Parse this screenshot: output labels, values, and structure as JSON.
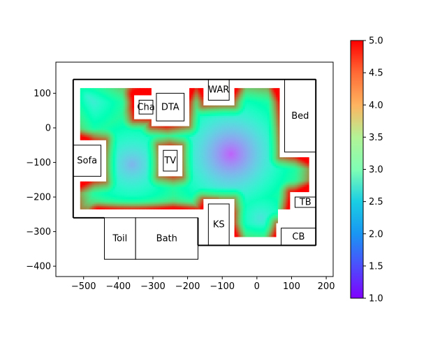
{
  "chart_data": {
    "type": "heatmap",
    "title": "",
    "xlabel": "",
    "ylabel": "",
    "xlim": [
      -580,
      220
    ],
    "ylim": [
      -430,
      190
    ],
    "xticks": [
      -500,
      -400,
      -300,
      -200,
      -100,
      0,
      100,
      200
    ],
    "yticks": [
      100,
      0,
      -100,
      -200,
      -300,
      -400
    ],
    "xtick_labels": [
      "−500",
      "−400",
      "−300",
      "−200",
      "−100",
      "0",
      "100",
      "200"
    ],
    "ytick_labels": [
      "100",
      "0",
      "−100",
      "−200",
      "−300",
      "−400"
    ],
    "colormap": "rainbow",
    "colorbar": {
      "range": [
        1.0,
        5.0
      ],
      "ticks": [
        1.0,
        1.5,
        2.0,
        2.5,
        3.0,
        3.5,
        4.0,
        4.5,
        5.0
      ],
      "tick_labels": [
        "1.0",
        "1.5",
        "2.0",
        "2.5",
        "3.0",
        "3.5",
        "4.0",
        "4.5",
        "5.0"
      ]
    },
    "field_region": {
      "xmin": -510,
      "xmax": 150,
      "ymin": -235,
      "ymax": 115
    },
    "field_extension": {
      "xmin": -110,
      "xmax": 60,
      "ymin": -315,
      "ymax": -235
    },
    "field_sources": [
      {
        "x": -75,
        "y": -75,
        "value": 1.5
      },
      {
        "x": -360,
        "y": -105,
        "value": 2.0
      },
      {
        "x": -490,
        "y": 90,
        "value": 2.3
      },
      {
        "x": 10,
        "y": -260,
        "value": 2.4
      }
    ],
    "rooms": [
      {
        "label": "WAR",
        "x0": -140,
        "x1": -80,
        "y0": 80,
        "y1": 140
      },
      {
        "label": "Cha",
        "x0": -340,
        "x1": -300,
        "y0": 40,
        "y1": 80
      },
      {
        "label": "DTA",
        "x0": -290,
        "x1": -210,
        "y0": 20,
        "y1": 100
      },
      {
        "label": "Bed",
        "x0": 80,
        "x1": 170,
        "y0": -70,
        "y1": 140
      },
      {
        "label": "Sofa",
        "x0": -530,
        "x1": -450,
        "y0": -140,
        "y1": -50
      },
      {
        "label": "TV",
        "x0": -270,
        "x1": -230,
        "y0": -125,
        "y1": -65
      },
      {
        "label": "TB",
        "x0": 110,
        "x1": 170,
        "y0": -230,
        "y1": -200
      },
      {
        "label": "KS",
        "x0": -140,
        "x1": -80,
        "y0": -340,
        "y1": -220
      },
      {
        "label": "CB",
        "x0": 70,
        "x1": 170,
        "y0": -340,
        "y1": -290
      },
      {
        "label": "Toil",
        "x0": -440,
        "x1": -350,
        "y0": -380,
        "y1": -260
      },
      {
        "label": "Bath",
        "x0": -350,
        "x1": -170,
        "y0": -380,
        "y1": -260
      }
    ],
    "walls": [
      [
        [
          -530,
          140
        ],
        [
          170,
          140
        ]
      ],
      [
        [
          170,
          140
        ],
        [
          170,
          -340
        ]
      ],
      [
        [
          -530,
          140
        ],
        [
          -530,
          -260
        ]
      ],
      [
        [
          -530,
          -260
        ],
        [
          -440,
          -260
        ]
      ],
      [
        [
          -170,
          -340
        ],
        [
          170,
          -340
        ]
      ],
      [
        [
          -170,
          -260
        ],
        [
          -170,
          -340
        ]
      ]
    ]
  }
}
